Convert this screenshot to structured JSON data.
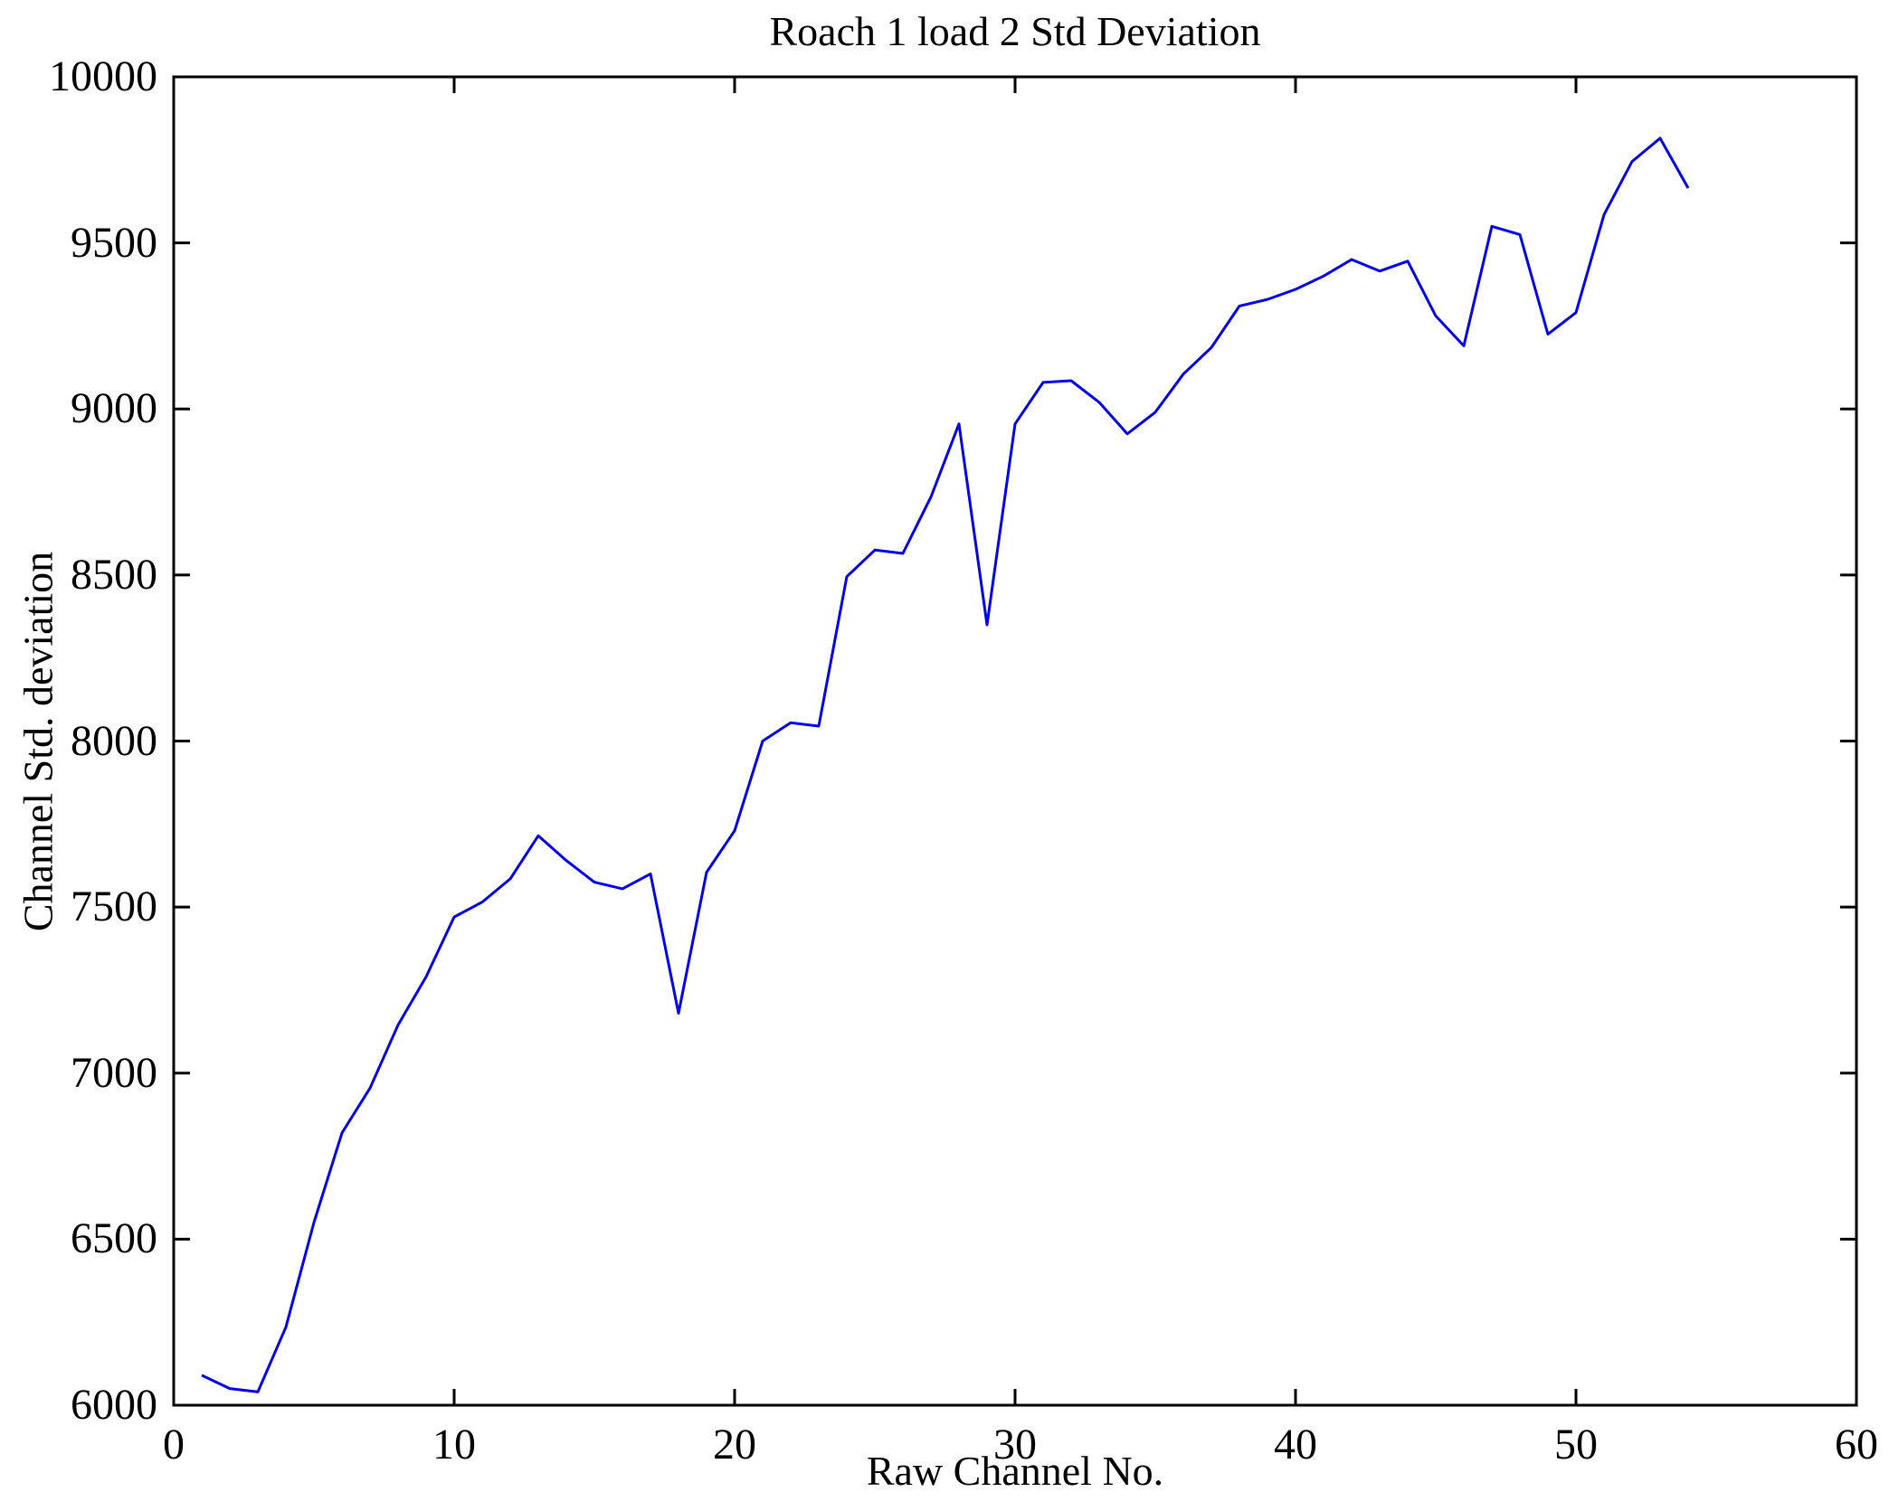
{
  "chart_data": {
    "type": "line",
    "title": "Roach 1 load 2 Std Deviation",
    "xlabel": "Raw Channel No.",
    "ylabel": "Channel Std. deviation",
    "xlim": [
      0,
      60
    ],
    "ylim": [
      6000,
      10000
    ],
    "xticks": [
      0,
      10,
      20,
      30,
      40,
      50,
      60
    ],
    "yticks": [
      6000,
      6500,
      7000,
      7500,
      8000,
      8500,
      9000,
      9500,
      10000
    ],
    "grid": false,
    "legend": "none",
    "line_color": "#0000ee",
    "axis_color": "#000000",
    "series": [
      {
        "name": "Channel Std. deviation",
        "x": [
          1,
          2,
          3,
          4,
          5,
          6,
          7,
          8,
          9,
          10,
          11,
          12,
          13,
          14,
          15,
          16,
          17,
          18,
          19,
          20,
          21,
          22,
          23,
          24,
          25,
          26,
          27,
          28,
          29,
          30,
          31,
          32,
          33,
          34,
          35,
          36,
          37,
          38,
          39,
          40,
          41,
          42,
          43,
          44,
          45,
          46,
          47,
          48,
          49,
          50,
          51,
          52,
          53,
          54
        ],
        "values": [
          6090,
          6050,
          6040,
          6235,
          6550,
          6820,
          6955,
          7145,
          7290,
          7470,
          7515,
          7585,
          7715,
          7640,
          7575,
          7555,
          7600,
          7180,
          7605,
          7730,
          8000,
          8055,
          8045,
          8495,
          8575,
          8565,
          8735,
          8955,
          8350,
          8955,
          9080,
          9085,
          9020,
          8925,
          8990,
          9105,
          9185,
          9310,
          9330,
          9360,
          9400,
          9450,
          9415,
          9445,
          9280,
          9190,
          9550,
          9525,
          9225,
          9290,
          9585,
          9745,
          9815,
          9665
        ]
      }
    ]
  }
}
